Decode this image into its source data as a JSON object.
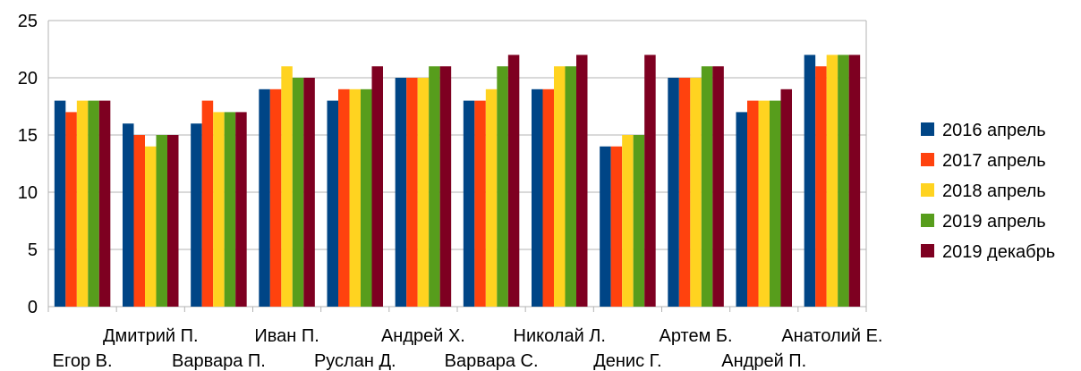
{
  "chart_data": {
    "type": "bar",
    "title": "",
    "xlabel": "",
    "ylabel": "",
    "ylim": [
      0,
      25
    ],
    "yticks": [
      0,
      5,
      10,
      15,
      20,
      25
    ],
    "grid": true,
    "legend_position": "right",
    "categories": [
      "Егор В.",
      "Дмитрий П.",
      "Варвара П.",
      "Иван П.",
      "Руслан Д.",
      "Андрей Х.",
      "Варвара С.",
      "Николай Л.",
      "Денис Г.",
      "Артем Б.",
      "Андрей П.",
      "Анатолий Е."
    ],
    "series": [
      {
        "name": "2016 апрель",
        "color": "#004586",
        "values": [
          18,
          16,
          16,
          19,
          18,
          20,
          18,
          19,
          14,
          20,
          17,
          22
        ]
      },
      {
        "name": "2017 апрель",
        "color": "#ff420e",
        "values": [
          17,
          15,
          18,
          19,
          19,
          20,
          18,
          19,
          14,
          20,
          18,
          21
        ]
      },
      {
        "name": "2018 апрель",
        "color": "#ffd320",
        "values": [
          18,
          14,
          17,
          21,
          19,
          20,
          19,
          21,
          15,
          20,
          18,
          22
        ]
      },
      {
        "name": "2019 апрель",
        "color": "#579d1c",
        "values": [
          18,
          15,
          17,
          20,
          19,
          21,
          21,
          21,
          15,
          21,
          18,
          22
        ]
      },
      {
        "name": "2019 декабрь",
        "color": "#7e0021",
        "values": [
          18,
          15,
          17,
          20,
          21,
          21,
          22,
          22,
          22,
          21,
          19,
          22
        ]
      }
    ]
  }
}
